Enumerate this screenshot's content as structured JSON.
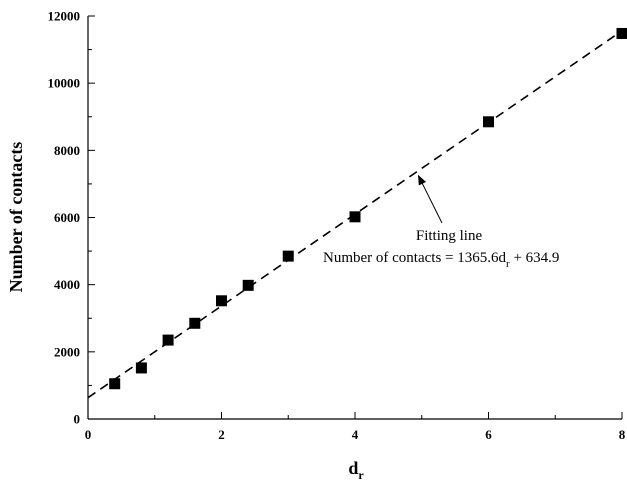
{
  "chart_data": {
    "type": "scatter",
    "title": "",
    "xlabel": "d",
    "xlabel_subscript": "r",
    "ylabel": "Number of contacts",
    "xlim": [
      0,
      8
    ],
    "ylim": [
      0,
      12000
    ],
    "x_ticks": [
      0,
      2,
      4,
      6,
      8
    ],
    "y_ticks": [
      0,
      2000,
      4000,
      6000,
      8000,
      10000,
      12000
    ],
    "x_tick_labels": [
      "0",
      "2",
      "4",
      "6",
      "8"
    ],
    "y_tick_labels": [
      "0",
      "2000",
      "4000",
      "6000",
      "8000",
      "10000",
      "12000"
    ],
    "grid": false,
    "series": [
      {
        "marker": "square",
        "color": "#000000",
        "x": [
          0.4,
          0.8,
          1.2,
          1.6,
          2.0,
          2.4,
          3.0,
          4.0,
          6.0,
          8.0
        ],
        "y": [
          1050,
          1520,
          2350,
          2850,
          3520,
          3980,
          4850,
          6020,
          8850,
          11480
        ]
      }
    ],
    "fit_line": {
      "slope": 1365.6,
      "intercept": 634.9,
      "style": "dashed",
      "color": "#000000"
    },
    "annotation": {
      "line1": "Fitting line",
      "line2_prefix": "Number of contacts = 1365.6d",
      "line2_subscript": "r",
      "line2_suffix": " + 634.9",
      "arrow_target_x": 4.95
    }
  }
}
